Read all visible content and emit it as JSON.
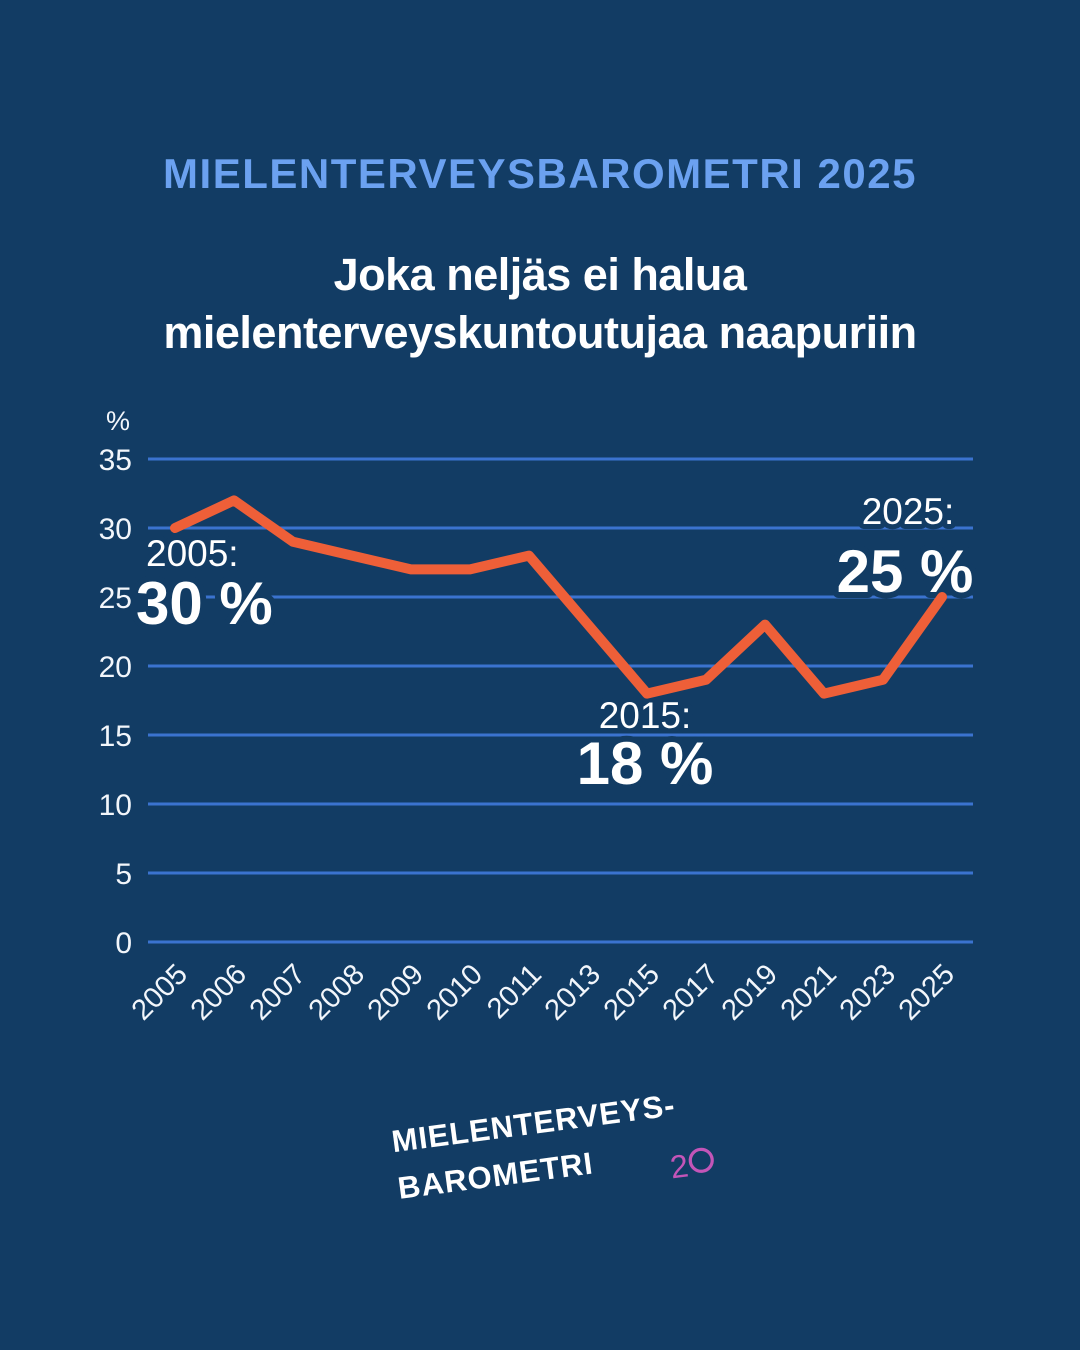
{
  "page": {
    "background_color": "#123C64"
  },
  "kicker": {
    "label": "MIELENTERVEYSBAROMETRI 2025",
    "color": "#6BA1F0"
  },
  "title": {
    "line1": "Joka neljäs ei halua",
    "line2": "mielenterveyskuntoutujaa naapuriin"
  },
  "chart_data": {
    "type": "line",
    "categories": [
      "2005",
      "2006",
      "2007",
      "2008",
      "2009",
      "2010",
      "2011",
      "2013",
      "2015",
      "2017",
      "2019",
      "2021",
      "2023",
      "2025"
    ],
    "values": [
      30,
      32,
      29,
      28,
      27,
      27,
      28,
      23,
      18,
      19,
      23,
      18,
      19,
      25
    ],
    "title": "",
    "xlabel": "",
    "ylabel": "%",
    "ylim": [
      0,
      35
    ],
    "yticks": [
      0,
      5,
      10,
      15,
      20,
      25,
      30,
      35
    ],
    "grid": true,
    "x_tick_rotation_deg": -45,
    "legend": "none",
    "colors": {
      "line": "#EE5F38",
      "grid": "#3B73CF",
      "tick_label": "#F2F6FB",
      "annotation": "#FFFFFF"
    },
    "annotations": [
      {
        "anchor_category": "2005",
        "year_label": "2005:",
        "value_label": "30 %"
      },
      {
        "anchor_category": "2015",
        "year_label": "2015:",
        "value_label": "18 %"
      },
      {
        "anchor_category": "2025",
        "year_label": "2025:",
        "value_label": "25 %"
      }
    ]
  },
  "logo": {
    "line1": "MIELENTERVEYS-",
    "line2": "BAROMETRI",
    "anniversary_number": "20",
    "number_color": "#C355B8"
  }
}
